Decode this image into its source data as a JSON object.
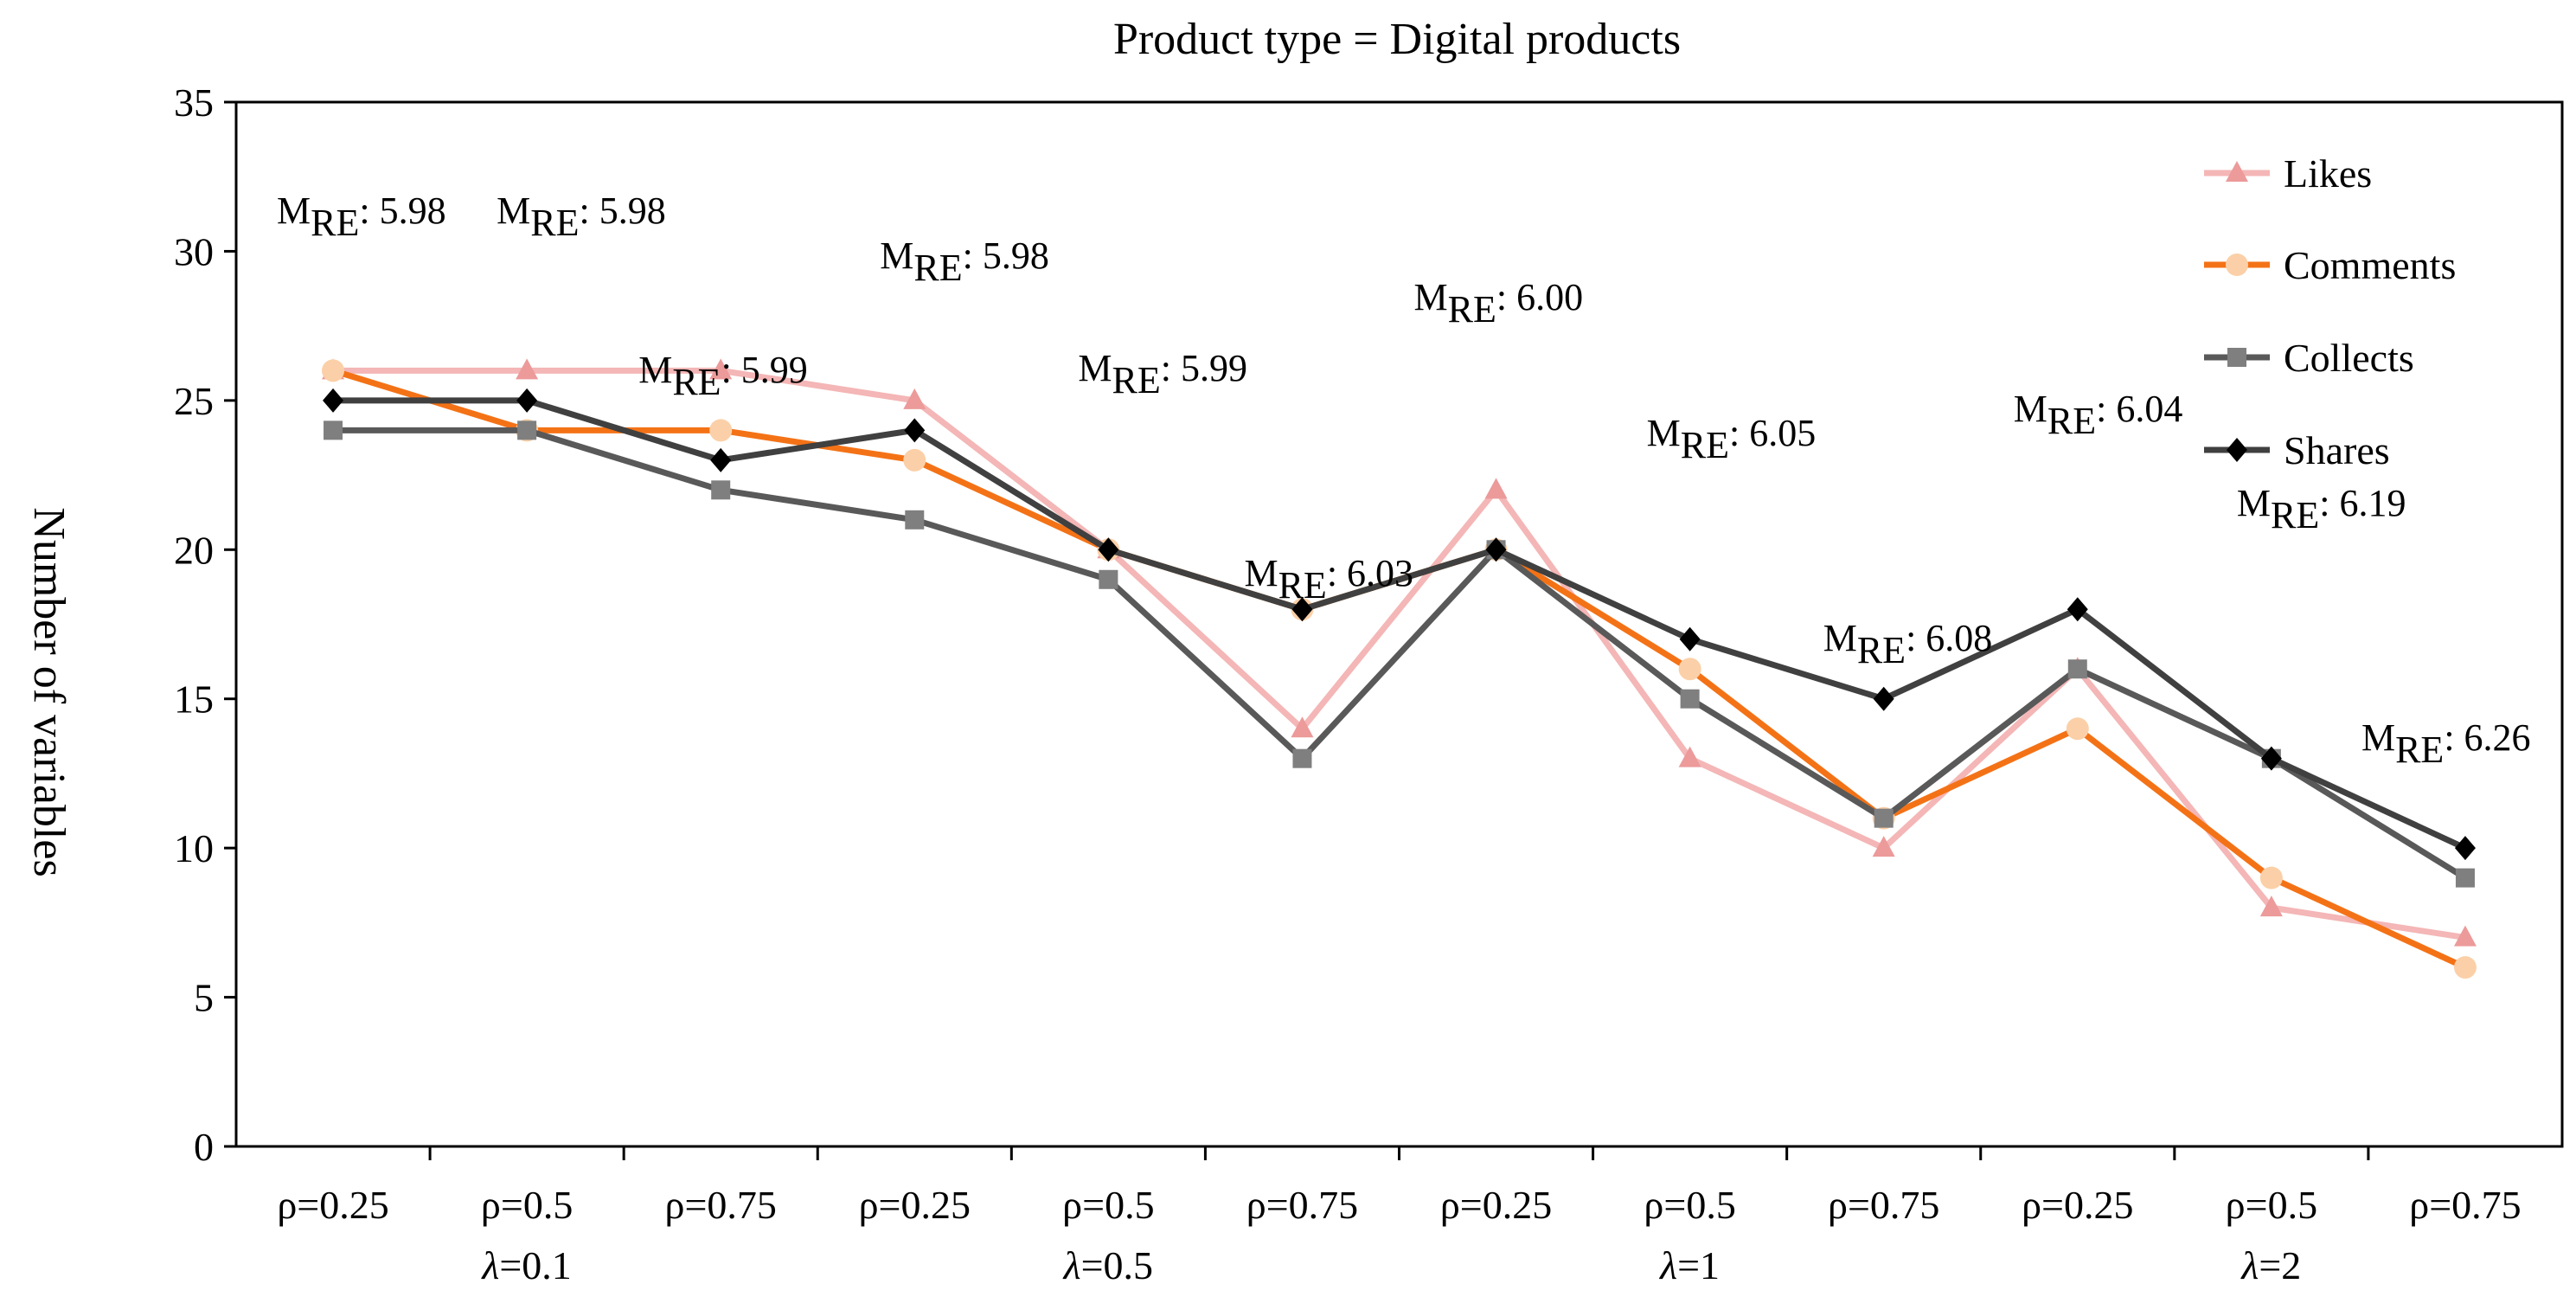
{
  "chart_data": {
    "type": "line",
    "title": "Product type = Digital products",
    "xlabel": "",
    "ylabel": "Number of variables",
    "ylim": [
      0,
      35
    ],
    "yticks": [
      0,
      5,
      10,
      15,
      20,
      25,
      30,
      35
    ],
    "grid": false,
    "legend_position": "top-right",
    "categories": [
      "ρ=0.25",
      "ρ=0.5",
      "ρ=0.75",
      "ρ=0.25",
      "ρ=0.5",
      "ρ=0.75",
      "ρ=0.25",
      "ρ=0.5",
      "ρ=0.75",
      "ρ=0.25",
      "ρ=0.5",
      "ρ=0.75"
    ],
    "groups": [
      {
        "label": "λ=0.1",
        "start": 0,
        "end": 2
      },
      {
        "label": "λ=0.5",
        "start": 3,
        "end": 5
      },
      {
        "label": "λ=1",
        "start": 6,
        "end": 8
      },
      {
        "label": "λ=2",
        "start": 9,
        "end": 11
      }
    ],
    "series": [
      {
        "name": "Likes",
        "marker": "triangle",
        "color": "#f4b6b6",
        "marker_color": "#ec9a9a",
        "values": [
          26,
          26,
          26,
          25,
          20,
          14,
          22,
          13,
          10,
          16,
          8,
          7
        ]
      },
      {
        "name": "Comments",
        "marker": "circle",
        "color": "#f47216",
        "marker_color": "#fbd0a8",
        "values": [
          26,
          24,
          24,
          23,
          20,
          18,
          20,
          16,
          11,
          14,
          9,
          6
        ]
      },
      {
        "name": "Collects",
        "marker": "square",
        "color": "#595959",
        "marker_color": "#7f7f7f",
        "values": [
          24,
          24,
          22,
          21,
          19,
          13,
          20,
          15,
          11,
          16,
          13,
          9
        ]
      },
      {
        "name": "Shares",
        "marker": "diamond",
        "color": "#404040",
        "marker_color": "#000000",
        "values": [
          25,
          25,
          23,
          24,
          20,
          18,
          20,
          17,
          15,
          18,
          13,
          10
        ]
      }
    ],
    "annotations": [
      {
        "main": "M",
        "sub": "RE",
        "value": ": 5.98"
      },
      {
        "main": "M",
        "sub": "RE",
        "value": ": 5.98"
      },
      {
        "main": "M",
        "sub": "RE",
        "value": ": 5.99"
      },
      {
        "main": "M",
        "sub": "RE",
        "value": ": 5.98"
      },
      {
        "main": "M",
        "sub": "RE",
        "value": ": 5.99"
      },
      {
        "main": "M",
        "sub": "RE",
        "value": ": 6.03"
      },
      {
        "main": "M",
        "sub": "RE",
        "value": ": 6.00"
      },
      {
        "main": "M",
        "sub": "RE",
        "value": ": 6.05"
      },
      {
        "main": "M",
        "sub": "RE",
        "value": ": 6.08"
      },
      {
        "main": "M",
        "sub": "RE",
        "value": ": 6.04"
      },
      {
        "main": "M",
        "sub": "RE",
        "value": ": 6.19"
      },
      {
        "main": "M",
        "sub": "RE",
        "value": ": 6.26"
      }
    ]
  }
}
